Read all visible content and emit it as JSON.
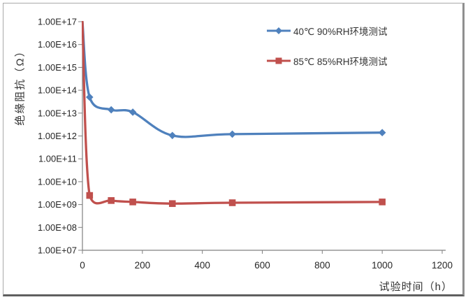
{
  "frame": {
    "background": "#ffffff"
  },
  "chart_data": {
    "type": "line",
    "title": "",
    "xlabel": "试验时间（h）",
    "ylabel": "绝缘阻抗（Ω）",
    "grid": false,
    "legend_position": "top-right-inside",
    "x_axis": {
      "min": 0,
      "max": 1200,
      "tick_step": 200,
      "tick_values": [
        0,
        200,
        400,
        600,
        800,
        1000,
        1200
      ],
      "tick_labels": [
        "0",
        "200",
        "400",
        "600",
        "800",
        "1000",
        "1200"
      ]
    },
    "y_axis": {
      "scale": "log",
      "max_exp": 17,
      "min_exp": 7,
      "tick_labels": [
        "1.00E+17",
        "1.00E+16",
        "1.00E+15",
        "1.00E+14",
        "1.00E+13",
        "1.00E+12",
        "1.00E+11",
        "1.00E+10",
        "1.00E+09",
        "1.00E+08",
        "1.00E+07"
      ]
    },
    "series": [
      {
        "name": "40℃ 90%RH环境测试",
        "color": "#4f81bd",
        "marker": "diamond",
        "x": [
          0,
          24,
          96,
          168,
          300,
          500,
          1000
        ],
        "values": [
          1e+17,
          50000000000000.0,
          14000000000000.0,
          11000000000000.0,
          1050000000000.0,
          1200000000000.0,
          1400000000000.0
        ]
      },
      {
        "name": "85℃ 85%RH环境测试",
        "color": "#c0504d",
        "marker": "square",
        "x": [
          0,
          24,
          96,
          168,
          300,
          500,
          1000
        ],
        "values": [
          1e+17,
          2500000000.0,
          1500000000.0,
          1300000000.0,
          1100000000.0,
          1200000000.0,
          1300000000.0
        ]
      }
    ],
    "colors": {
      "axis": "#808080",
      "tick_text": "#262626"
    }
  }
}
